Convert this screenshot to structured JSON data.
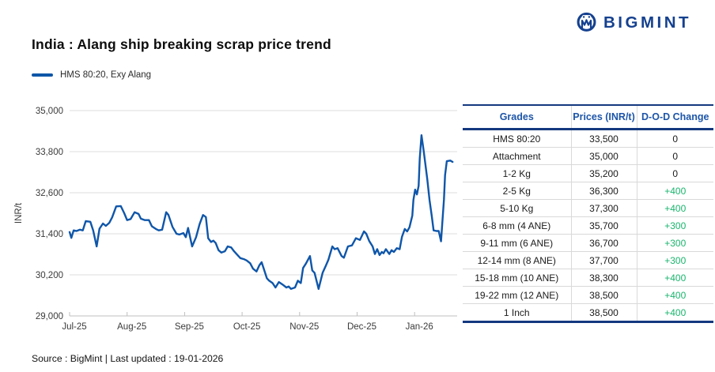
{
  "header": {
    "title": "India : Alang ship breaking scrap price trend",
    "brand": "BIGMINT"
  },
  "legend": {
    "label": "HMS 80:20, Exy Alang"
  },
  "chart_data": {
    "type": "line",
    "title": "India : Alang ship breaking scrap price trend",
    "series_name": "HMS 80:20, Exy Alang",
    "ylabel": "INR/t",
    "ylim": [
      29000,
      35000
    ],
    "y_ticks": [
      35000,
      33800,
      32600,
      31400,
      30200,
      29000
    ],
    "y_tick_labels": [
      "35,000",
      "33,800",
      "32,600",
      "31,400",
      "30,200",
      "29,000"
    ],
    "x_tick_labels": [
      "Jul-25",
      "Aug-25",
      "Sep-25",
      "Oct-25",
      "Nov-25",
      "Dec-25",
      "Jan-26"
    ],
    "x_domain_months": [
      0,
      6.74
    ],
    "grid": "horizontal",
    "legend_position": "top-left",
    "line_color": "#0f56a9",
    "points": [
      [
        0,
        31450
      ],
      [
        0.03,
        31280
      ],
      [
        0.07,
        31500
      ],
      [
        0.12,
        31480
      ],
      [
        0.18,
        31520
      ],
      [
        0.23,
        31500
      ],
      [
        0.28,
        31770
      ],
      [
        0.36,
        31750
      ],
      [
        0.41,
        31500
      ],
      [
        0.47,
        31030
      ],
      [
        0.52,
        31550
      ],
      [
        0.58,
        31700
      ],
      [
        0.63,
        31630
      ],
      [
        0.69,
        31720
      ],
      [
        0.74,
        31880
      ],
      [
        0.81,
        32200
      ],
      [
        0.89,
        32210
      ],
      [
        0.95,
        32000
      ],
      [
        1,
        31800
      ],
      [
        1.06,
        31830
      ],
      [
        1.13,
        32030
      ],
      [
        1.2,
        31980
      ],
      [
        1.24,
        31840
      ],
      [
        1.31,
        31800
      ],
      [
        1.38,
        31800
      ],
      [
        1.43,
        31620
      ],
      [
        1.5,
        31540
      ],
      [
        1.55,
        31500
      ],
      [
        1.61,
        31520
      ],
      [
        1.68,
        32030
      ],
      [
        1.72,
        31950
      ],
      [
        1.79,
        31600
      ],
      [
        1.86,
        31400
      ],
      [
        1.91,
        31380
      ],
      [
        1.98,
        31420
      ],
      [
        2.02,
        31300
      ],
      [
        2.06,
        31570
      ],
      [
        2.13,
        31030
      ],
      [
        2.2,
        31300
      ],
      [
        2.26,
        31680
      ],
      [
        2.32,
        31950
      ],
      [
        2.37,
        31890
      ],
      [
        2.41,
        31270
      ],
      [
        2.46,
        31160
      ],
      [
        2.5,
        31200
      ],
      [
        2.54,
        31130
      ],
      [
        2.59,
        30920
      ],
      [
        2.64,
        30850
      ],
      [
        2.7,
        30890
      ],
      [
        2.75,
        31030
      ],
      [
        2.81,
        31000
      ],
      [
        2.86,
        30890
      ],
      [
        2.92,
        30780
      ],
      [
        2.97,
        30690
      ],
      [
        3.03,
        30660
      ],
      [
        3.08,
        30620
      ],
      [
        3.14,
        30540
      ],
      [
        3.19,
        30380
      ],
      [
        3.25,
        30300
      ],
      [
        3.3,
        30480
      ],
      [
        3.34,
        30570
      ],
      [
        3.43,
        30100
      ],
      [
        3.47,
        30030
      ],
      [
        3.53,
        29960
      ],
      [
        3.58,
        29830
      ],
      [
        3.64,
        29990
      ],
      [
        3.7,
        29920
      ],
      [
        3.77,
        29830
      ],
      [
        3.81,
        29860
      ],
      [
        3.85,
        29790
      ],
      [
        3.92,
        29830
      ],
      [
        3.97,
        30030
      ],
      [
        4.02,
        29960
      ],
      [
        4.06,
        30400
      ],
      [
        4.11,
        30530
      ],
      [
        4.18,
        30750
      ],
      [
        4.22,
        30330
      ],
      [
        4.26,
        30260
      ],
      [
        4.33,
        29790
      ],
      [
        4.4,
        30260
      ],
      [
        4.46,
        30480
      ],
      [
        4.5,
        30640
      ],
      [
        4.57,
        31030
      ],
      [
        4.61,
        30950
      ],
      [
        4.66,
        30980
      ],
      [
        4.73,
        30750
      ],
      [
        4.77,
        30700
      ],
      [
        4.84,
        31030
      ],
      [
        4.91,
        31060
      ],
      [
        4.98,
        31270
      ],
      [
        5.05,
        31220
      ],
      [
        5.12,
        31470
      ],
      [
        5.16,
        31400
      ],
      [
        5.21,
        31190
      ],
      [
        5.27,
        31030
      ],
      [
        5.31,
        30810
      ],
      [
        5.35,
        30950
      ],
      [
        5.39,
        30780
      ],
      [
        5.43,
        30870
      ],
      [
        5.46,
        30830
      ],
      [
        5.5,
        30950
      ],
      [
        5.56,
        30810
      ],
      [
        5.6,
        30920
      ],
      [
        5.64,
        30870
      ],
      [
        5.69,
        30980
      ],
      [
        5.74,
        30950
      ],
      [
        5.78,
        31310
      ],
      [
        5.83,
        31540
      ],
      [
        5.87,
        31470
      ],
      [
        5.91,
        31590
      ],
      [
        5.96,
        31930
      ],
      [
        5.98,
        32390
      ],
      [
        6.01,
        32690
      ],
      [
        6.04,
        32550
      ],
      [
        6.07,
        32800
      ],
      [
        6.09,
        33600
      ],
      [
        6.12,
        34280
      ],
      [
        6.16,
        33800
      ],
      [
        6.22,
        33000
      ],
      [
        6.26,
        32380
      ],
      [
        6.3,
        31900
      ],
      [
        6.33,
        31500
      ],
      [
        6.38,
        31480
      ],
      [
        6.42,
        31480
      ],
      [
        6.46,
        31180
      ],
      [
        6.51,
        32400
      ],
      [
        6.53,
        33110
      ],
      [
        6.56,
        33520
      ],
      [
        6.62,
        33540
      ],
      [
        6.66,
        33500
      ]
    ]
  },
  "table": {
    "headers": [
      "Grades",
      "Prices (INR/t)",
      "D-O-D Change"
    ],
    "rows": [
      {
        "grade": "HMS 80:20",
        "price": "33,500",
        "change": "0"
      },
      {
        "grade": "Attachment",
        "price": "35,000",
        "change": "0"
      },
      {
        "grade": "1-2 Kg",
        "price": "35,200",
        "change": "0"
      },
      {
        "grade": "2-5 Kg",
        "price": "36,300",
        "change": "+400"
      },
      {
        "grade": "5-10 Kg",
        "price": "37,300",
        "change": "+400"
      },
      {
        "grade": "6-8 mm (4 ANE)",
        "price": "35,700",
        "change": "+300"
      },
      {
        "grade": "9-11 mm (6 ANE)",
        "price": "36,700",
        "change": "+300"
      },
      {
        "grade": "12-14 mm (8 ANE)",
        "price": "37,700",
        "change": "+300"
      },
      {
        "grade": "15-18 mm (10 ANE)",
        "price": "38,300",
        "change": "+400"
      },
      {
        "grade": "19-22 mm (12 ANE)",
        "price": "38,500",
        "change": "+400"
      },
      {
        "grade": "1 Inch",
        "price": "38,500",
        "change": "+400"
      }
    ]
  },
  "footer": {
    "source": "Source : BigMint | Last updated : 19-01-2026"
  },
  "colors": {
    "accent_blue": "#0f56a9",
    "brand_navy": "#15418f",
    "table_border_navy": "#14387f",
    "table_header_text": "#1d55a8",
    "positive_green": "#19b56d",
    "gridline_gray": "#dcdcdc",
    "axis_gray": "#bfbfbf"
  }
}
